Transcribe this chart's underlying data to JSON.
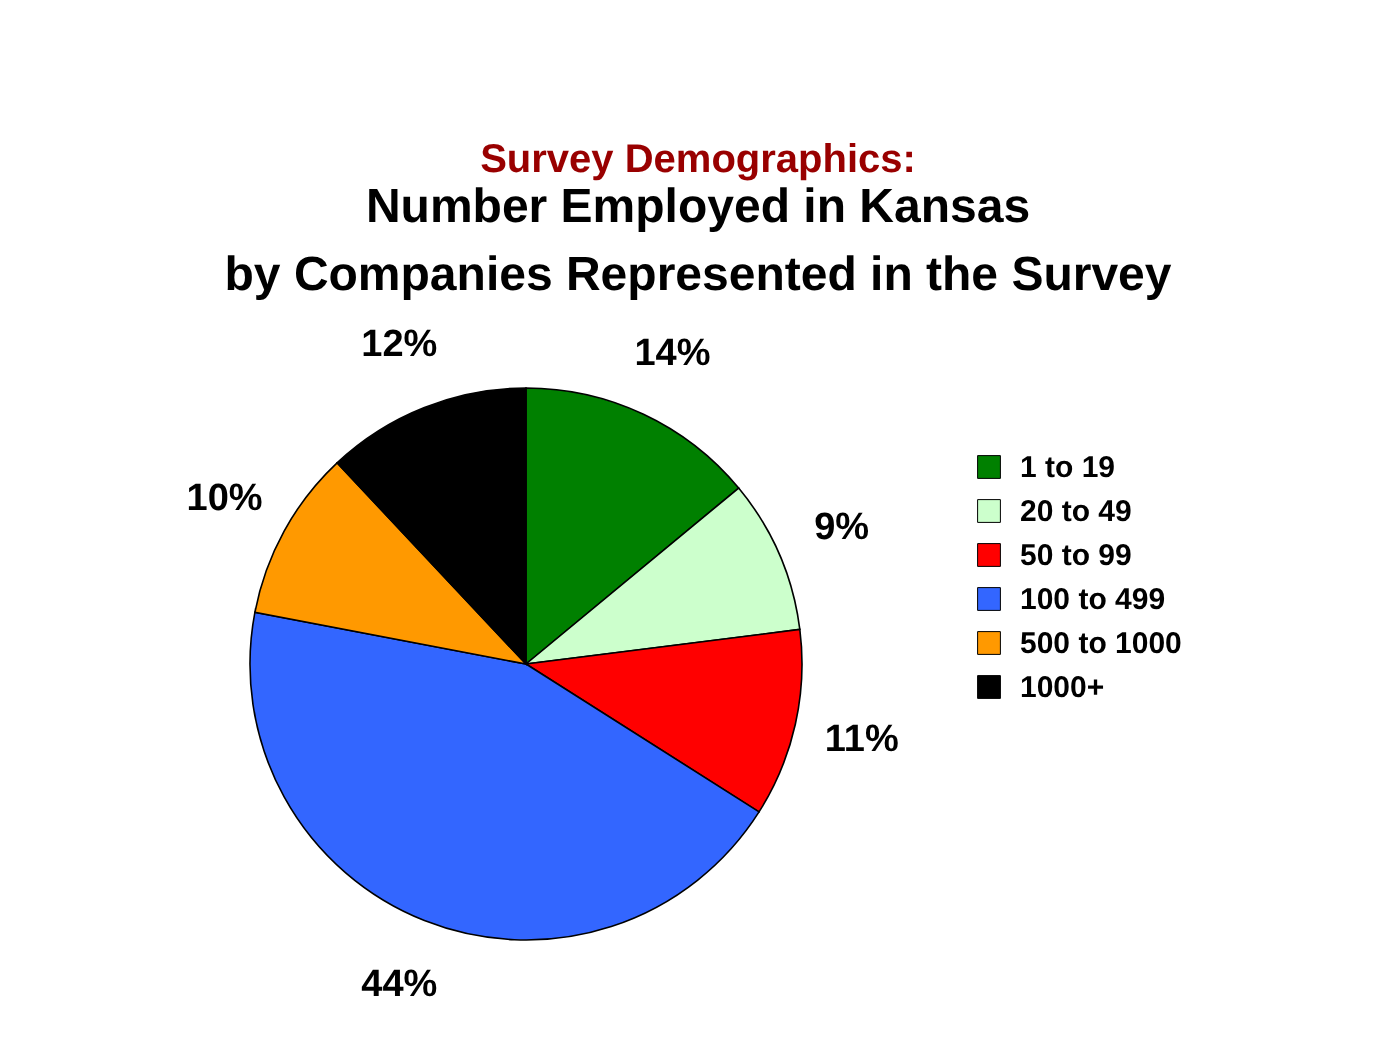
{
  "chart_data": {
    "type": "pie",
    "title": "Survey Demographics:",
    "subtitle": "Number Employed in Kansas\nby Companies Represented in the Survey",
    "categories": [
      "1 to 19",
      "20 to 49",
      "50 to 99",
      "100 to 499",
      "500 to 1000",
      "1000+"
    ],
    "values": [
      14,
      9,
      11,
      44,
      10,
      12
    ],
    "colors": [
      "#008000",
      "#ccffcc",
      "#ff0000",
      "#3366ff",
      "#ff9900",
      "#000000"
    ],
    "value_labels": [
      "14%",
      "9%",
      "11%",
      "44%",
      "10%",
      "12%"
    ],
    "legend": "right"
  }
}
